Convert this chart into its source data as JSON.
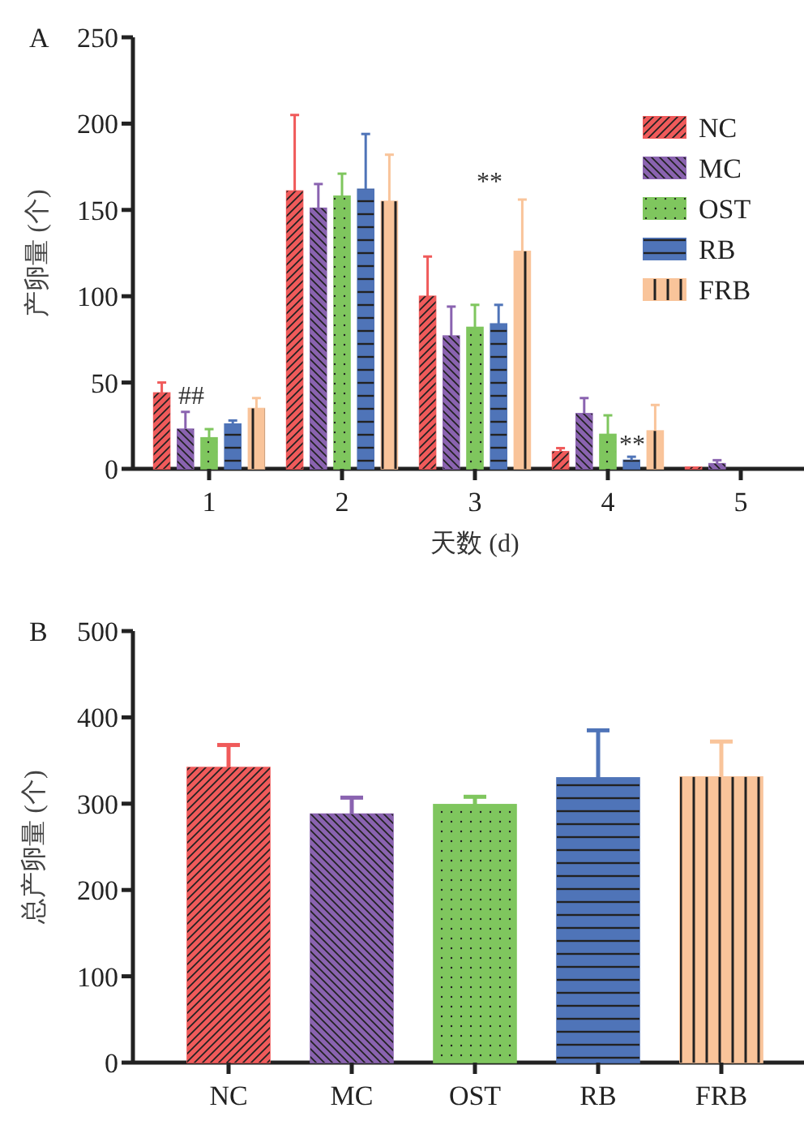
{
  "chart_data": [
    {
      "type": "bar",
      "title": "A",
      "xlabel": "天数 (d)",
      "ylabel": "产卵量 (个)",
      "categories": [
        "1",
        "2",
        "3",
        "4",
        "5"
      ],
      "ylim": [
        0,
        250
      ],
      "yticks": [
        0,
        50,
        100,
        150,
        200,
        250
      ],
      "legend": "top right",
      "grid": false,
      "series": [
        {
          "name": "NC",
          "color": "#f05a5a",
          "values": [
            44,
            161,
            100,
            10,
            1
          ],
          "errors": [
            [
              44,
              50
            ],
            [
              161,
              205
            ],
            [
              100,
              123
            ],
            [
              10,
              12
            ],
            null
          ]
        },
        {
          "name": "MC",
          "color": "#8a63b0",
          "values": [
            23,
            151,
            77,
            32,
            3
          ],
          "errors": [
            [
              23,
              33
            ],
            [
              151,
              165
            ],
            [
              77,
              94
            ],
            [
              32,
              41
            ],
            [
              3,
              5
            ]
          ]
        },
        {
          "name": "OST",
          "color": "#7fc65e",
          "values": [
            18,
            158,
            82,
            20,
            0
          ],
          "errors": [
            [
              18,
              23
            ],
            [
              158,
              171
            ],
            [
              82,
              95
            ],
            [
              20,
              31
            ],
            null
          ]
        },
        {
          "name": "RB",
          "color": "#4f74b8",
          "values": [
            26,
            162,
            84,
            5,
            0
          ],
          "errors": [
            [
              26,
              28
            ],
            [
              162,
              194
            ],
            [
              84,
              95
            ],
            [
              5,
              7
            ],
            null
          ]
        },
        {
          "name": "FRB",
          "color": "#f9c49a",
          "values": [
            35,
            155,
            126,
            22,
            0
          ],
          "errors": [
            [
              35,
              41
            ],
            [
              155,
              182
            ],
            [
              126,
              156
            ],
            [
              22,
              37
            ],
            null
          ]
        }
      ],
      "annotations": [
        "##",
        "**",
        "**"
      ]
    },
    {
      "type": "bar",
      "title": "B",
      "ylabel": "总产卵量 (个)",
      "categories": [
        "NC",
        "MC",
        "OST",
        "RB",
        "FRB"
      ],
      "ylim": [
        0,
        500
      ],
      "yticks": [
        0,
        100,
        200,
        300,
        400,
        500
      ],
      "grid": false,
      "legend": false,
      "values": [
        342,
        288,
        299,
        330,
        331
      ],
      "colors": [
        "#f05a5a",
        "#8a63b0",
        "#7fc65e",
        "#4f74b8",
        "#f9c49a"
      ],
      "errors": [
        [
          342,
          368
        ],
        [
          288,
          307
        ],
        [
          299,
          308
        ],
        [
          330,
          385
        ],
        [
          331,
          372
        ]
      ]
    }
  ]
}
